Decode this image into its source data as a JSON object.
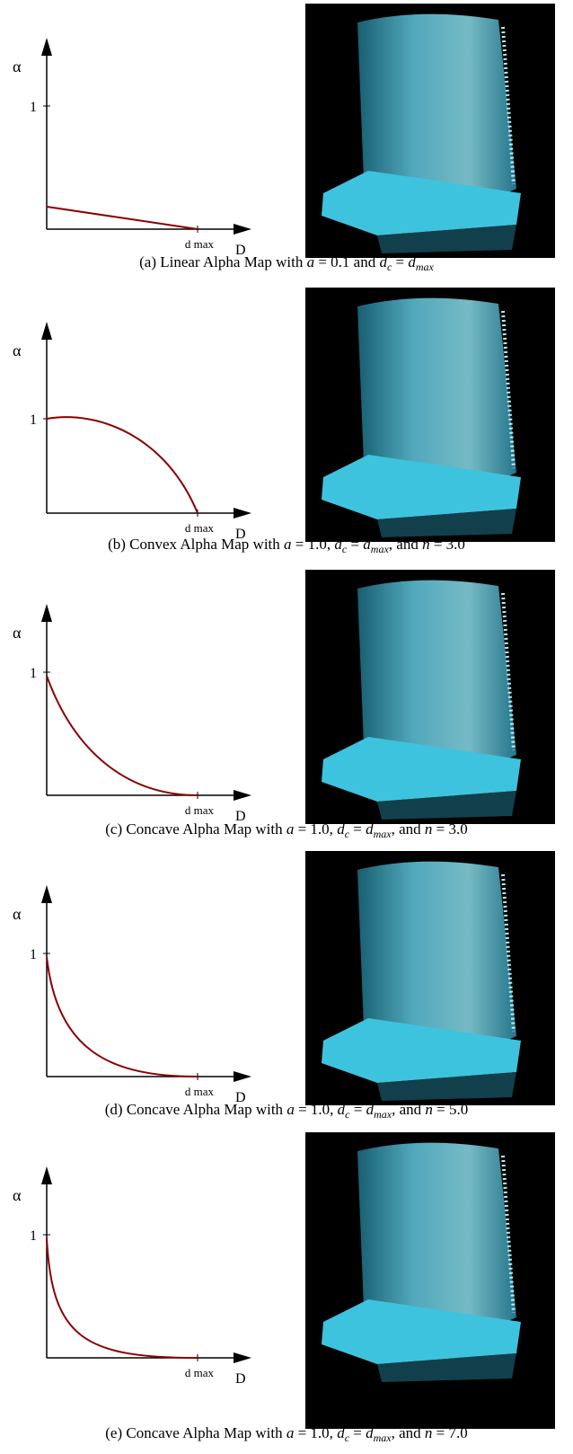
{
  "panels": [
    {
      "diagram": {
        "y_label": "α",
        "y_tick": "1",
        "x_tick": "d max",
        "x_label": "D"
      },
      "caption": [
        {
          "text": "(a) Linear Alpha Map with "
        },
        {
          "text": "a",
          "style": "math"
        },
        {
          "text": " = 0.1 and "
        },
        {
          "text": "d",
          "style": "math"
        },
        {
          "text": "c",
          "style": "sub"
        },
        {
          "text": " = "
        },
        {
          "text": "d",
          "style": "math"
        },
        {
          "text": "max",
          "style": "sub"
        }
      ]
    },
    {
      "diagram": {
        "y_label": "α",
        "y_tick": "1",
        "x_tick": "d max",
        "x_label": "D"
      },
      "caption": [
        {
          "text": "(b) Convex Alpha Map with "
        },
        {
          "text": "a",
          "style": "math"
        },
        {
          "text": " = 1.0, "
        },
        {
          "text": "d",
          "style": "math"
        },
        {
          "text": "c",
          "style": "sub"
        },
        {
          "text": " = "
        },
        {
          "text": "d",
          "style": "math"
        },
        {
          "text": "max",
          "style": "sub"
        },
        {
          "text": ", and "
        },
        {
          "text": "n",
          "style": "math"
        },
        {
          "text": " = 3.0"
        }
      ]
    },
    {
      "diagram": {
        "y_label": "α",
        "y_tick": "1",
        "x_tick": "d max",
        "x_label": "D"
      },
      "caption": [
        {
          "text": "(c) Concave Alpha Map with "
        },
        {
          "text": "a",
          "style": "math"
        },
        {
          "text": " = 1.0, "
        },
        {
          "text": "d",
          "style": "math"
        },
        {
          "text": "c",
          "style": "sub"
        },
        {
          "text": " = "
        },
        {
          "text": "d",
          "style": "math"
        },
        {
          "text": "max",
          "style": "sub"
        },
        {
          "text": ", and "
        },
        {
          "text": "n",
          "style": "math"
        },
        {
          "text": " = 3.0"
        }
      ]
    },
    {
      "diagram": {
        "y_label": "α",
        "y_tick": "1",
        "x_tick": "d max",
        "x_label": "D"
      },
      "caption": [
        {
          "text": "(d) Concave Alpha Map with "
        },
        {
          "text": "a",
          "style": "math"
        },
        {
          "text": " = 1.0, "
        },
        {
          "text": "d",
          "style": "math"
        },
        {
          "text": "c",
          "style": "sub"
        },
        {
          "text": " = "
        },
        {
          "text": "d",
          "style": "math"
        },
        {
          "text": "max",
          "style": "sub"
        },
        {
          "text": ", and "
        },
        {
          "text": "n",
          "style": "math"
        },
        {
          "text": " = 5.0"
        }
      ]
    },
    {
      "diagram": {
        "y_label": "α",
        "y_tick": "1",
        "x_tick": "d max",
        "x_label": "D"
      },
      "caption": [
        {
          "text": "(e) Concave Alpha Map with "
        },
        {
          "text": "a",
          "style": "math"
        },
        {
          "text": " = 1.0, "
        },
        {
          "text": "d",
          "style": "math"
        },
        {
          "text": "c",
          "style": "sub"
        },
        {
          "text": " = "
        },
        {
          "text": "d",
          "style": "math"
        },
        {
          "text": "max",
          "style": "sub"
        },
        {
          "text": ", and "
        },
        {
          "text": "n",
          "style": "math"
        },
        {
          "text": " = 7.0"
        }
      ]
    }
  ]
}
